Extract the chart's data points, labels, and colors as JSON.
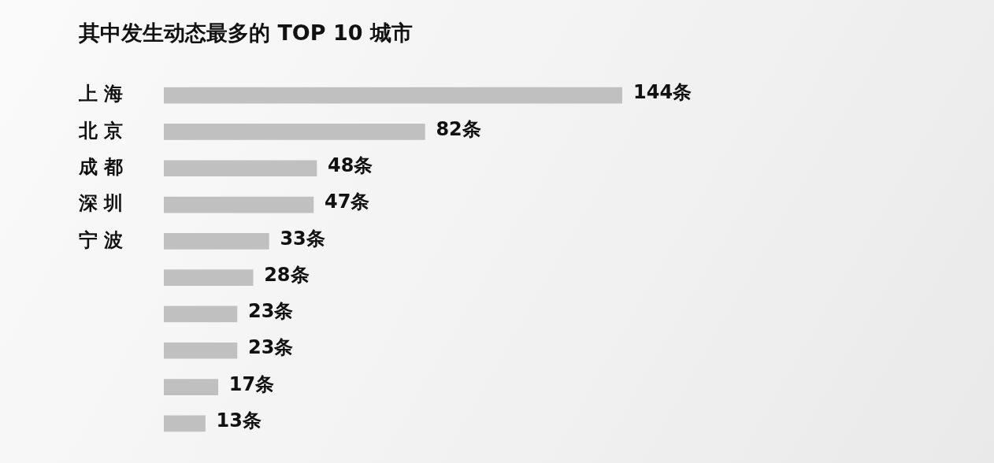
{
  "chart_data": {
    "type": "bar",
    "orientation": "horizontal",
    "title": "其中发生动态最多的 TOP 10 城市",
    "categories": [
      "上 海",
      "北 京",
      "成 都",
      "深 圳",
      "宁 波",
      null,
      null,
      null,
      null,
      null
    ],
    "values": [
      144,
      82,
      48,
      47,
      33,
      28,
      23,
      23,
      17,
      13
    ],
    "value_labels": [
      "144条",
      "82条",
      "48条",
      "47条",
      "33条",
      "28条",
      "23条",
      "23条",
      "17条",
      "13条"
    ],
    "color": "#c0c0c0",
    "tick_labels": "y",
    "legend": false
  }
}
